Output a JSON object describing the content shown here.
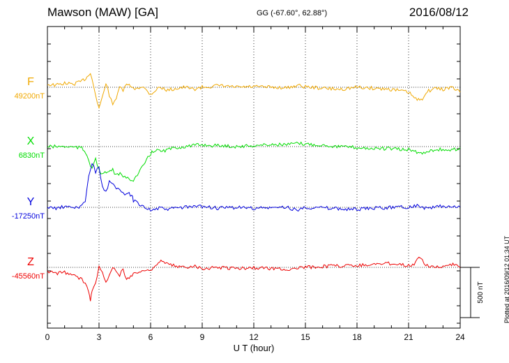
{
  "header": {
    "station": "Mawson (MAW)  [GA]",
    "coords": "GG (-67.60°,  62.88°)",
    "date": "2016/08/12"
  },
  "footer": {
    "plotted": "Plotted at 2016/09/12 01:34 UT"
  },
  "chart_data": {
    "type": "line",
    "title": "Mawson (MAW)  [GA]",
    "xlabel": "U T (hour)",
    "xlim": [
      0,
      24
    ],
    "xticks": [
      "0",
      "3",
      "6",
      "9",
      "12",
      "15",
      "18",
      "21",
      "24"
    ],
    "grid": "dotted vertical lines every 3 hours",
    "scale_bar": {
      "label": "500 nT",
      "value": 500
    },
    "series": [
      {
        "name": "F",
        "baseline_label": "49200nT",
        "baseline": 49200,
        "color": "#f0a800",
        "x": [
          0,
          0.5,
          1,
          1.5,
          2,
          2.3,
          2.5,
          2.7,
          2.9,
          3,
          3.2,
          3.4,
          3.6,
          3.8,
          4,
          4.2,
          4.4,
          4.6,
          5,
          5.5,
          6,
          6.5,
          7,
          7.5,
          8,
          8.5,
          9,
          10,
          11,
          12,
          13,
          14,
          14.5,
          15,
          16,
          17,
          18,
          19,
          20,
          21,
          21.5,
          21.8,
          22,
          22.5,
          23,
          23.5,
          24
        ],
        "values": [
          49230,
          49220,
          49240,
          49230,
          49260,
          49300,
          49350,
          49200,
          49050,
          48990,
          49100,
          49250,
          49120,
          49020,
          49100,
          49210,
          49150,
          49240,
          49180,
          49210,
          49130,
          49200,
          49170,
          49190,
          49200,
          49180,
          49200,
          49215,
          49200,
          49205,
          49200,
          49195,
          49220,
          49205,
          49190,
          49180,
          49200,
          49190,
          49180,
          49150,
          49070,
          49090,
          49150,
          49190,
          49180,
          49200,
          49150
        ]
      },
      {
        "name": "X",
        "baseline_label": "6830nT",
        "baseline": 6830,
        "color": "#00dd00",
        "x": [
          0,
          0.5,
          1,
          1.5,
          2,
          2.3,
          2.5,
          2.6,
          2.8,
          3,
          3.2,
          3.5,
          3.8,
          4,
          4.3,
          4.5,
          5,
          5.3,
          5.6,
          6,
          6.3,
          6.6,
          7,
          7.5,
          8,
          8.5,
          9,
          9.5,
          10,
          11,
          12,
          13,
          14,
          14.5,
          15,
          16,
          17,
          18,
          19,
          20,
          20.5,
          21,
          21.4,
          21.8,
          22.2,
          22.5,
          23,
          23.5,
          24
        ],
        "values": [
          6830,
          6830,
          6830,
          6825,
          6815,
          6750,
          6650,
          6620,
          6700,
          6600,
          6550,
          6580,
          6600,
          6540,
          6560,
          6520,
          6500,
          6560,
          6650,
          6760,
          6800,
          6780,
          6800,
          6820,
          6830,
          6840,
          6850,
          6840,
          6840,
          6830,
          6840,
          6850,
          6850,
          6860,
          6855,
          6845,
          6830,
          6820,
          6810,
          6810,
          6800,
          6800,
          6780,
          6760,
          6790,
          6800,
          6800,
          6790,
          6820
        ]
      },
      {
        "name": "Y",
        "baseline_label": "-17250nT",
        "baseline": -17250,
        "color": "#0000dd",
        "x": [
          0,
          0.5,
          1,
          1.5,
          2,
          2.2,
          2.4,
          2.6,
          2.8,
          3,
          3.2,
          3.4,
          3.6,
          4,
          4.2,
          4.4,
          4.6,
          4.9,
          5,
          5.5,
          6,
          6.5,
          7,
          7.5,
          8,
          9,
          10,
          11,
          12,
          13,
          14,
          14.5,
          15,
          16,
          17,
          18,
          19,
          20,
          20.5,
          21,
          21.5,
          22,
          22.5,
          23,
          23.5,
          24
        ],
        "values": [
          -17250,
          -17260,
          -17245,
          -17255,
          -17240,
          -17180,
          -16950,
          -16800,
          -16900,
          -16850,
          -17050,
          -17100,
          -17000,
          -17050,
          -17080,
          -17120,
          -17100,
          -17130,
          -17180,
          -17230,
          -17280,
          -17260,
          -17270,
          -17255,
          -17250,
          -17240,
          -17260,
          -17250,
          -17260,
          -17255,
          -17250,
          -17280,
          -17250,
          -17255,
          -17265,
          -17270,
          -17260,
          -17250,
          -17240,
          -17250,
          -17230,
          -17260,
          -17250,
          -17240,
          -17250,
          -17245
        ]
      },
      {
        "name": "Z",
        "baseline_label": "-45560nT",
        "baseline": -45560,
        "color": "#ee0000",
        "x": [
          0,
          0.5,
          1,
          1.5,
          2,
          2.2,
          2.4,
          2.5,
          2.6,
          2.8,
          3,
          3.2,
          3.4,
          3.6,
          3.8,
          4,
          4.2,
          4.4,
          4.6,
          5,
          5.5,
          6,
          6.3,
          6.6,
          7,
          7.5,
          8,
          8.5,
          9,
          10,
          11,
          12,
          13,
          14,
          15,
          16,
          17,
          18,
          19,
          20,
          21,
          21.4,
          21.6,
          21.8,
          22,
          22.5,
          23,
          23.5,
          23.8,
          24
        ],
        "values": [
          -45600,
          -45620,
          -45610,
          -45640,
          -45680,
          -45720,
          -45800,
          -45880,
          -45780,
          -45700,
          -45560,
          -45620,
          -45720,
          -45620,
          -45560,
          -45600,
          -45640,
          -45580,
          -45680,
          -45620,
          -45600,
          -45580,
          -45540,
          -45500,
          -45530,
          -45550,
          -45560,
          -45540,
          -45570,
          -45560,
          -45570,
          -45565,
          -45570,
          -45580,
          -45560,
          -45550,
          -45545,
          -45540,
          -45530,
          -45520,
          -45540,
          -45520,
          -45460,
          -45480,
          -45540,
          -45550,
          -45560,
          -45540,
          -45520,
          -45560
        ]
      }
    ]
  }
}
